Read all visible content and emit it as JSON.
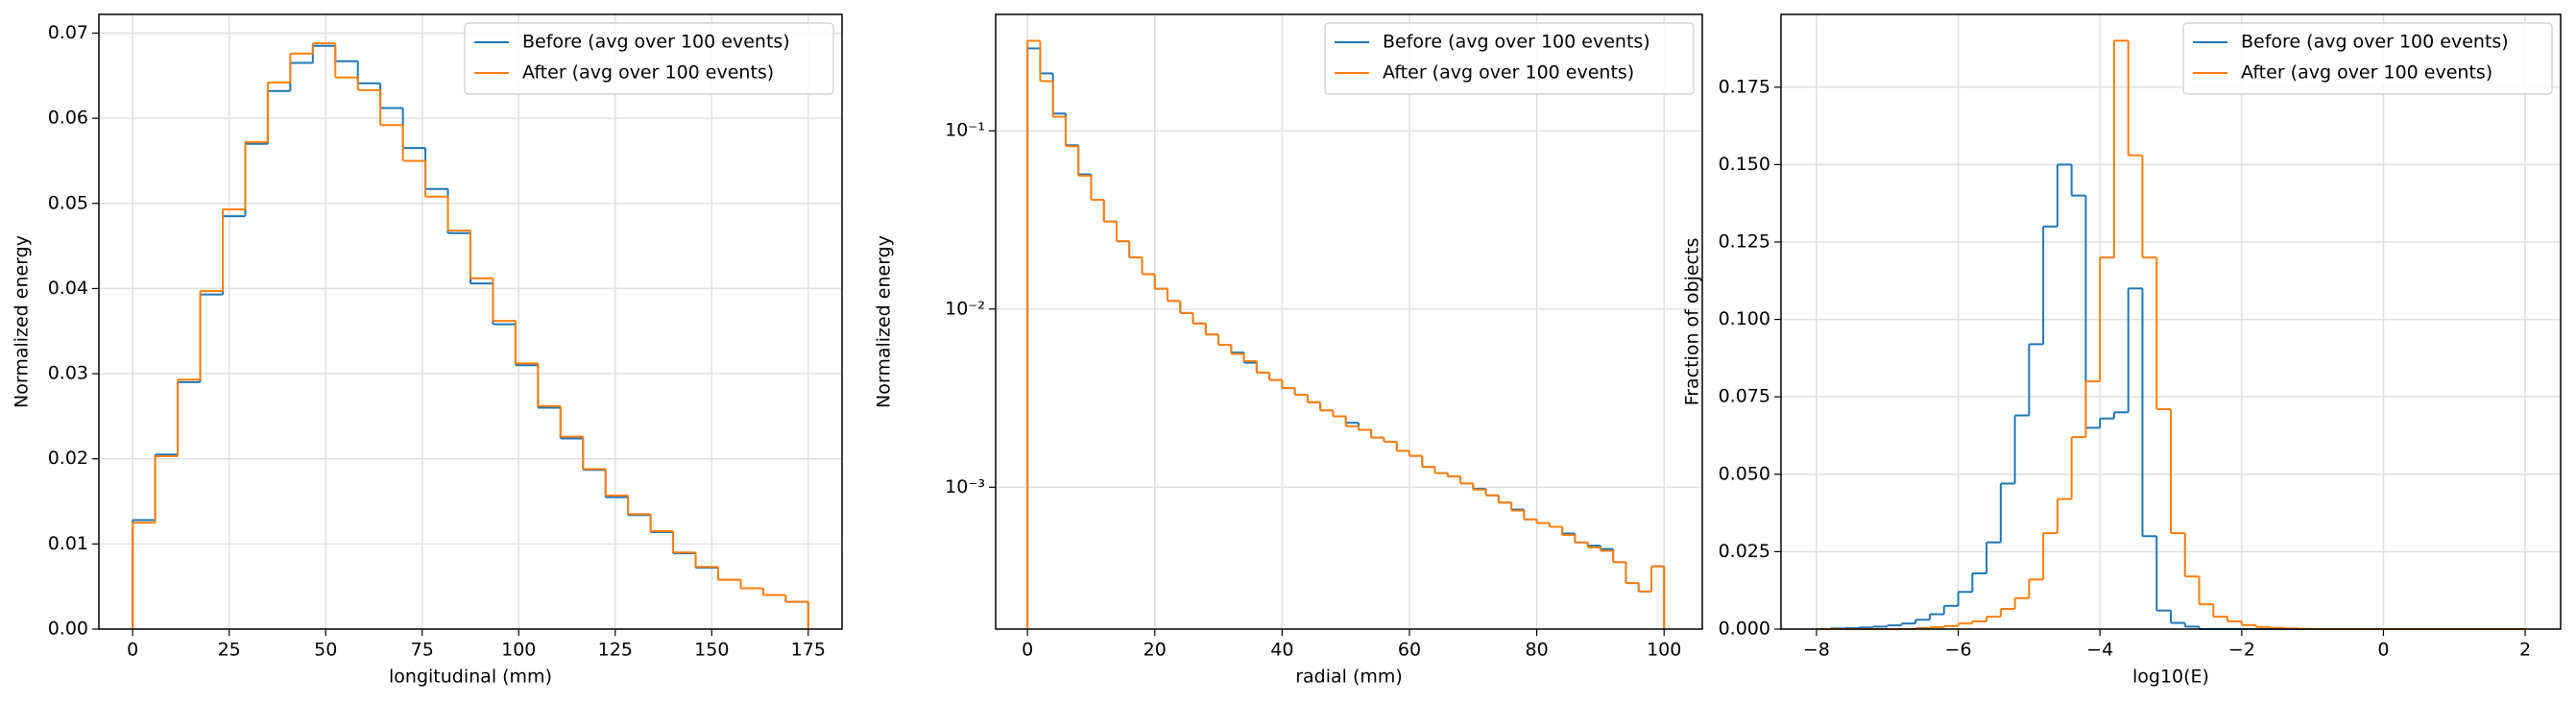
{
  "chart_data": [
    {
      "type": "histogram",
      "xlabel": "longitudinal (mm)",
      "ylabel": "Normalized energy",
      "bins": [
        0,
        5.833,
        11.667,
        17.5,
        23.333,
        29.167,
        35,
        40.833,
        46.667,
        52.5,
        58.333,
        64.167,
        70,
        75.833,
        81.667,
        87.5,
        93.333,
        99.167,
        105,
        110.833,
        116.667,
        122.5,
        128.333,
        134.167,
        140,
        145.833,
        151.667,
        157.5,
        163.333,
        169.167,
        175
      ],
      "series": [
        {
          "name": "Before (avg over 100 events)",
          "color": "#1f77b4",
          "values": [
            0.0128,
            0.0205,
            0.029,
            0.0393,
            0.0485,
            0.057,
            0.0632,
            0.0665,
            0.0685,
            0.0667,
            0.0641,
            0.0612,
            0.0565,
            0.0517,
            0.0465,
            0.0406,
            0.0358,
            0.031,
            0.026,
            0.0224,
            0.0187,
            0.0155,
            0.0134,
            0.0114,
            0.0089,
            0.0072,
            0.0058,
            0.0048,
            0.004,
            0.0032
          ]
        },
        {
          "name": "After (avg over 100 events)",
          "color": "#ff7f0e",
          "values": [
            0.0125,
            0.0203,
            0.0293,
            0.0397,
            0.0493,
            0.0572,
            0.0642,
            0.0676,
            0.0688,
            0.0648,
            0.0633,
            0.0592,
            0.055,
            0.0508,
            0.0468,
            0.0412,
            0.0362,
            0.0312,
            0.0262,
            0.0226,
            0.0188,
            0.0157,
            0.0135,
            0.0115,
            0.009,
            0.0073,
            0.0058,
            0.0048,
            0.004,
            0.0032
          ]
        }
      ],
      "xlim": [
        -8.75,
        183.75
      ],
      "xticks": [
        0,
        25,
        50,
        75,
        100,
        125,
        150,
        175
      ],
      "ylim": [
        0,
        0.0722
      ],
      "yticks": [
        {
          "value": 0,
          "label": "0.00"
        },
        {
          "value": 0.01,
          "label": "0.01"
        },
        {
          "value": 0.02,
          "label": "0.02"
        },
        {
          "value": 0.03,
          "label": "0.03"
        },
        {
          "value": 0.04,
          "label": "0.04"
        },
        {
          "value": 0.05,
          "label": "0.05"
        },
        {
          "value": 0.06,
          "label": "0.06"
        },
        {
          "value": 0.07,
          "label": "0.07"
        }
      ],
      "grid": true,
      "legend": "upper right"
    },
    {
      "type": "histogram",
      "xlabel": "radial (mm)",
      "ylabel": "Normalized energy",
      "yscale": "log",
      "bins": [
        0,
        2,
        4,
        6,
        8,
        10,
        12,
        14,
        16,
        18,
        20,
        22,
        24,
        26,
        28,
        30,
        32,
        34,
        36,
        38,
        40,
        42,
        44,
        46,
        48,
        50,
        52,
        54,
        56,
        58,
        60,
        62,
        64,
        66,
        68,
        70,
        72,
        74,
        76,
        78,
        80,
        82,
        84,
        86,
        88,
        90,
        92,
        94,
        96,
        98,
        100
      ],
      "series": [
        {
          "name": "Before (avg over 100 events)",
          "color": "#1f77b4",
          "values": [
            0.29,
            0.21,
            0.125,
            0.083,
            0.057,
            0.041,
            0.031,
            0.024,
            0.0195,
            0.0157,
            0.013,
            0.0111,
            0.0095,
            0.0083,
            0.0072,
            0.0063,
            0.0057,
            0.005,
            0.0044,
            0.004,
            0.0036,
            0.0033,
            0.003,
            0.0027,
            0.0025,
            0.0023,
            0.0021,
            0.0019,
            0.0018,
            0.0016,
            0.0015,
            0.0013,
            0.0012,
            0.00115,
            0.00105,
            0.00098,
            0.0009,
            0.00082,
            0.00075,
            0.00066,
            0.00063,
            0.0006,
            0.00055,
            0.00049,
            0.00047,
            0.00045,
            0.00038,
            0.00029,
            0.00026,
            0.00036
          ]
        },
        {
          "name": "After (avg over 100 events)",
          "color": "#ff7f0e",
          "values": [
            0.32,
            0.19,
            0.12,
            0.082,
            0.056,
            0.041,
            0.031,
            0.024,
            0.0195,
            0.0157,
            0.013,
            0.0111,
            0.0095,
            0.0083,
            0.0072,
            0.0063,
            0.0056,
            0.0051,
            0.0044,
            0.004,
            0.0036,
            0.0033,
            0.003,
            0.0027,
            0.0025,
            0.0022,
            0.0021,
            0.0019,
            0.0018,
            0.0016,
            0.0015,
            0.0013,
            0.0012,
            0.00115,
            0.00105,
            0.00097,
            0.0009,
            0.00082,
            0.00074,
            0.00066,
            0.00063,
            0.0006,
            0.00054,
            0.00049,
            0.00046,
            0.00044,
            0.00038,
            0.00029,
            0.00026,
            0.00036
          ]
        }
      ],
      "xlim": [
        -5,
        106
      ],
      "xticks": [
        0,
        20,
        40,
        60,
        80,
        100
      ],
      "ylim": [
        0.00016,
        0.45
      ],
      "yticks": [
        {
          "value": 0.001,
          "label": "10⁻³"
        },
        {
          "value": 0.01,
          "label": "10⁻²"
        },
        {
          "value": 0.1,
          "label": "10⁻¹"
        }
      ],
      "grid": true,
      "legend": "upper right"
    },
    {
      "type": "histogram",
      "xlabel": "log10(E)",
      "ylabel": "Fraction of objects",
      "bins": [
        -8,
        -7.8,
        -7.6,
        -7.4,
        -7.2,
        -7,
        -6.8,
        -6.6,
        -6.4,
        -6.2,
        -6,
        -5.8,
        -5.6,
        -5.4,
        -5.2,
        -5,
        -4.8,
        -4.6,
        -4.4,
        -4.2,
        -4,
        -3.8,
        -3.6,
        -3.4,
        -3.2,
        -3,
        -2.8,
        -2.6,
        -2.4,
        -2.2,
        -2,
        -1.8,
        -1.6,
        -1.4,
        -1.2,
        -1,
        -0.8,
        -0.6,
        -0.4,
        -0.2,
        0,
        0.2,
        0.4,
        0.6,
        0.8,
        1,
        1.2,
        1.4,
        1.6,
        1.8,
        2
      ],
      "series": [
        {
          "name": "Before (avg over 100 events)",
          "color": "#1f77b4",
          "values": [
            0,
            0.0002,
            0.0003,
            0.0005,
            0.0008,
            0.0012,
            0.0018,
            0.003,
            0.0048,
            0.0075,
            0.012,
            0.018,
            0.028,
            0.047,
            0.069,
            0.092,
            0.13,
            0.15,
            0.14,
            0.065,
            0.068,
            0.07,
            0.11,
            0.03,
            0.006,
            0.002,
            0.0008,
            0,
            0,
            0,
            0,
            0,
            0,
            0,
            0,
            0,
            0,
            0,
            0,
            0,
            0,
            0,
            0,
            0,
            0,
            0,
            0,
            0,
            0,
            0
          ]
        },
        {
          "name": "After (avg over 100 events)",
          "color": "#ff7f0e",
          "values": [
            0,
            0,
            0,
            0,
            0,
            0,
            0,
            0.0003,
            0.0006,
            0.001,
            0.0018,
            0.0025,
            0.004,
            0.0065,
            0.01,
            0.016,
            0.031,
            0.042,
            0.062,
            0.08,
            0.12,
            0.19,
            0.153,
            0.12,
            0.071,
            0.031,
            0.017,
            0.008,
            0.004,
            0.0025,
            0.0013,
            0.0007,
            0.0004,
            0.0002,
            0.0001,
            0,
            0,
            0,
            0,
            0,
            0,
            0,
            0,
            0,
            0,
            0,
            0,
            0,
            0,
            0
          ]
        }
      ],
      "xlim": [
        -8.5,
        2.5
      ],
      "xticks": [
        {
          "value": -8,
          "label": "−8"
        },
        {
          "value": -6,
          "label": "−6"
        },
        {
          "value": -4,
          "label": "−4"
        },
        {
          "value": -2,
          "label": "−2"
        },
        0,
        2
      ],
      "ylim": [
        0,
        0.1985
      ],
      "yticks": [
        {
          "value": 0,
          "label": "0.000"
        },
        {
          "value": 0.025,
          "label": "0.025"
        },
        {
          "value": 0.05,
          "label": "0.050"
        },
        {
          "value": 0.075,
          "label": "0.075"
        },
        {
          "value": 0.1,
          "label": "0.100"
        },
        {
          "value": 0.125,
          "label": "0.125"
        },
        {
          "value": 0.15,
          "label": "0.150"
        },
        {
          "value": 0.175,
          "label": "0.175"
        }
      ],
      "grid": true,
      "legend": "upper right"
    }
  ]
}
